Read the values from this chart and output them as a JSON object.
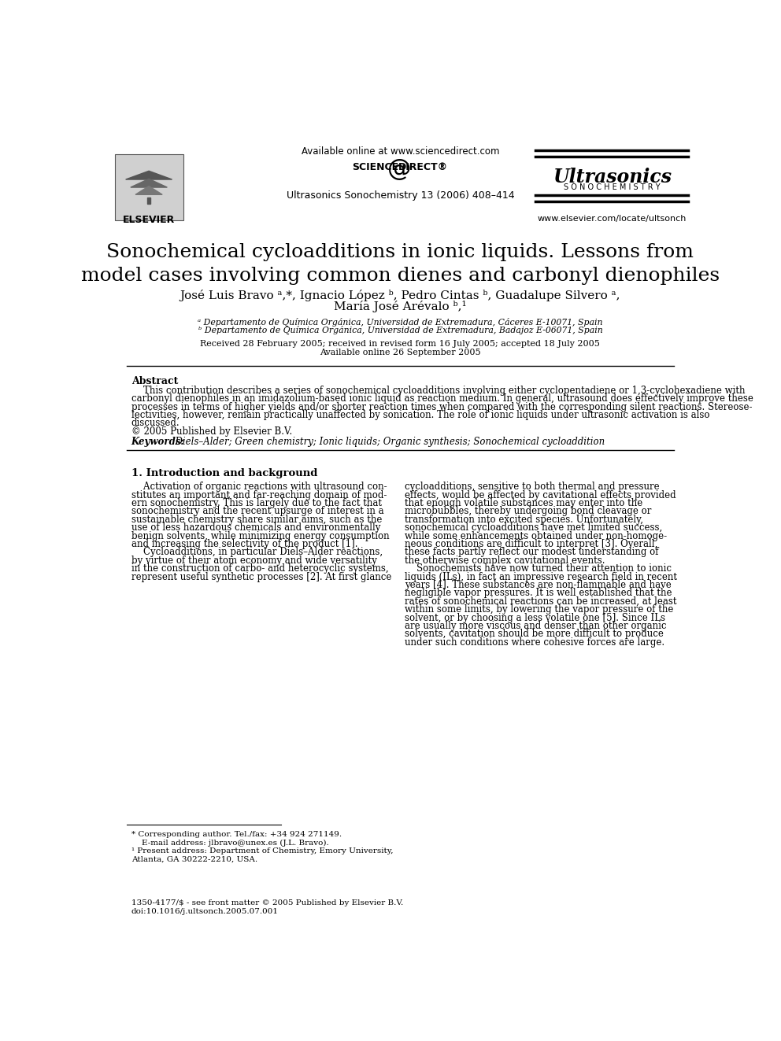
{
  "title": "Sonochemical cycloadditions in ionic liquids. Lessons from\nmodel cases involving common dienes and carbonyl dienophiles",
  "authors_line1": "José Luis Bravo ᵃ,*, Ignacio López ᵇ, Pedro Cintas ᵇ, Guadalupe Silvero ᵃ,",
  "authors_line2": "María José Arévalo ᵇ,¹",
  "affil_a": "ᵃ Departamento de Química Orgánica, Universidad de Extremadura, Cáceres E-10071, Spain",
  "affil_b": "ᵇ Departamento de Química Orgánica, Universidad de Extremadura, Badajoz E-06071, Spain",
  "dates_line1": "Received 28 February 2005; received in revised form 16 July 2005; accepted 18 July 2005",
  "dates_line2": "Available online 26 September 2005",
  "journal": "Ultrasonics Sonochemistry 13 (2006) 408–414",
  "available_online": "Available online at www.sciencedirect.com",
  "elsevier_label": "ELSEVIER",
  "website": "www.elsevier.com/locate/ultsonch",
  "ultrasonics_title": "Ultrasonics",
  "sonochemistry_label": "S O N O C H E M I S T R Y",
  "science_direct": "SCIENCE   DIRECT®",
  "abstract_title": "Abstract",
  "abstract_text": "    This contribution describes a series of sonochemical cycloadditions involving either cyclopentadiene or 1,3-cyclohexadiene with\ncarbonyl dienophiles in an imidazolium-based ionic liquid as reaction medium. In general, ultrasound does effectively improve these\nprocesses in terms of higher yields and/or shorter reaction times when compared with the corresponding silent reactions. Stereose-\nlectivities, however, remain practically unaffected by sonication. The role of ionic liquids under ultrasonic activation is also\ndiscussed.\n© 2005 Published by Elsevier B.V.",
  "keywords_bold": "Keywords:",
  "keywords_italic": "  Diels–Alder; Green chemistry; Ionic liquids; Organic synthesis; Sonochemical cycloaddition",
  "section1_title": "1. Introduction and background",
  "section1_col1_lines": [
    "    Activation of organic reactions with ultrasound con-",
    "stitutes an important and far-reaching domain of mod-",
    "ern sonochemistry. This is largely due to the fact that",
    "sonochemistry and the recent upsurge of interest in a",
    "sustainable chemistry share similar aims, such as the",
    "use of less hazardous chemicals and environmentally",
    "benign solvents, while minimizing energy consumption",
    "and increasing the selectivity of the product [1].",
    "    Cycloadditions, in particular Diels–Alder reactions,",
    "by virtue of their atom economy and wide versatility",
    "in the construction of carbo- and heterocyclic systems,",
    "represent useful synthetic processes [2]. At first glance"
  ],
  "section1_col2_lines": [
    "cycloadditions, sensitive to both thermal and pressure",
    "effects, would be affected by cavitational effects provided",
    "that enough volatile substances may enter into the",
    "microbubbles, thereby undergoing bond cleavage or",
    "transformation into excited species. Unfortunately,",
    "sonochemical cycloadditions have met limited success,",
    "while some enhancements obtained under non-homoge-",
    "neous conditions are difficult to interpret [3]. Overall,",
    "these facts partly reflect our modest understanding of",
    "the otherwise complex cavitational events.",
    "    Sonochemists have now turned their attention to ionic",
    "liquids (ILs), in fact an impressive research field in recent",
    "years [4]. These substances are non-flammable and have",
    "negligible vapor pressures. It is well established that the",
    "rates of sonochemical reactions can be increased, at least",
    "within some limits, by lowering the vapor pressure of the",
    "solvent, or by choosing a less volatile one [5]. Since ILs",
    "are usually more viscous and denser than other organic",
    "solvents, cavitation should be more difficult to produce",
    "under such conditions where cohesive forces are large."
  ],
  "footnote_star": "* Corresponding author. Tel./fax: +34 924 271149.",
  "footnote_email": "    E-mail address: jlbravo@unex.es (J.L. Bravo).",
  "footnote_1_line1": "¹ Present address: Department of Chemistry, Emory University,",
  "footnote_1_line2": "Atlanta, GA 30222-2210, USA.",
  "issn": "1350-4177/$ - see front matter © 2005 Published by Elsevier B.V.",
  "doi": "doi:10.1016/j.ultsonch.2005.07.001",
  "background_color": "#ffffff"
}
